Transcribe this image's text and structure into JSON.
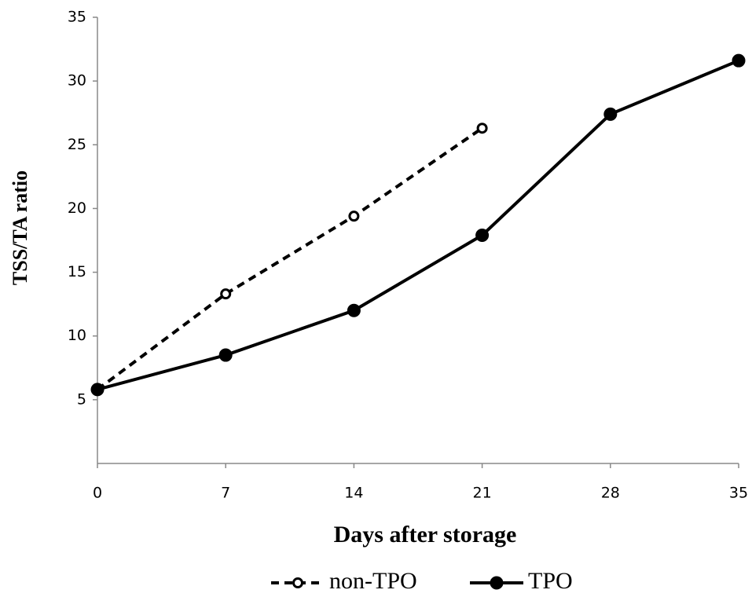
{
  "chart_data": {
    "type": "line",
    "x_label": "Days after storage",
    "y_label": "TSS/TA ratio",
    "x": [
      0,
      7,
      14,
      21,
      28,
      35
    ],
    "series": [
      {
        "name": "non-TPO",
        "color": "#000000",
        "line_style": "dashed",
        "marker": "open",
        "values": [
          5.8,
          13.3,
          19.4,
          26.3,
          null,
          null
        ]
      },
      {
        "name": "TPO",
        "color": "#000000",
        "line_style": "solid",
        "marker": "filled",
        "values": [
          5.8,
          8.5,
          12.0,
          17.9,
          27.4,
          31.6
        ]
      }
    ],
    "xlim": [
      0,
      35
    ],
    "xticks": [
      0,
      7,
      14,
      21,
      28,
      35
    ],
    "ylim": [
      0,
      35
    ],
    "yticks": [
      5,
      10,
      15,
      20,
      25,
      30,
      35
    ],
    "grid": false,
    "legend": "bottom"
  }
}
